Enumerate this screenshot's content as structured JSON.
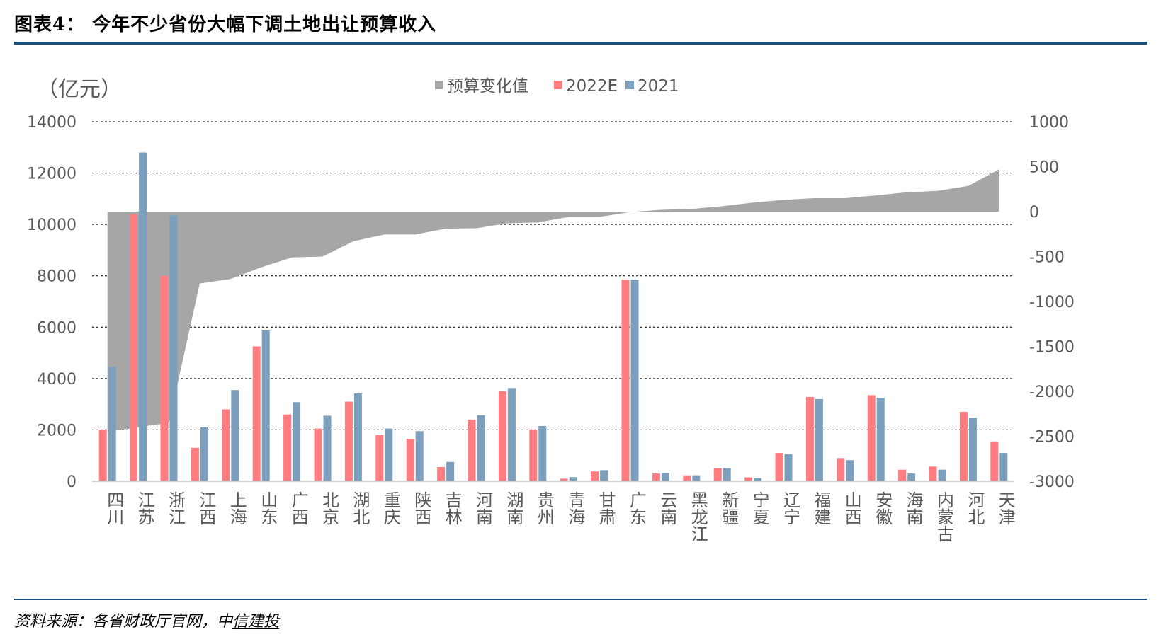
{
  "header": {
    "title": "图表4：  今年不少省份大幅下调土地出让预算收入"
  },
  "footer": {
    "source_prefix": "资料来源：各省财政厅官网，中",
    "source_brand": "信建投"
  },
  "colors": {
    "rule": "#1f4e79",
    "area": "#a6a6a6",
    "bar_2022E": "#ff7c80",
    "bar_2021": "#7b9fbc",
    "grid": "#000000"
  },
  "chart_data": {
    "type": "bar",
    "unit_label": "（亿元）",
    "legend": {
      "position": "top-center",
      "items": [
        "预算变化值",
        "2022E",
        "2021"
      ]
    },
    "categories": [
      "四川",
      "江苏",
      "浙江",
      "江西",
      "上海",
      "山东",
      "广西",
      "北京",
      "湖北",
      "重庆",
      "陕西",
      "吉林",
      "河南",
      "湖南",
      "贵州",
      "青海",
      "甘肃",
      "广东",
      "云南",
      "黑龙江",
      "新疆",
      "宁夏",
      "辽宁",
      "福建",
      "山西",
      "安徽",
      "海南",
      "内蒙古",
      "河北",
      "天津"
    ],
    "series": [
      {
        "name": "2022E",
        "kind": "bar",
        "axis": "left",
        "values": [
          2000,
          10400,
          8000,
          1300,
          2800,
          5250,
          2600,
          2050,
          3100,
          1800,
          1650,
          550,
          2400,
          3500,
          2000,
          100,
          380,
          7850,
          300,
          230,
          500,
          150,
          1100,
          3280,
          900,
          3350,
          450,
          570,
          2700,
          1550
        ]
      },
      {
        "name": "2021",
        "kind": "bar",
        "axis": "left",
        "values": [
          4450,
          12800,
          10350,
          2100,
          3550,
          5870,
          3080,
          2550,
          3420,
          2050,
          1950,
          750,
          2570,
          3630,
          2150,
          160,
          430,
          7850,
          320,
          230,
          520,
          120,
          1050,
          3200,
          820,
          3250,
          300,
          450,
          2470,
          1100
        ]
      },
      {
        "name": "预算变化值",
        "kind": "area",
        "axis": "right",
        "values": [
          -2450,
          -2400,
          -2350,
          -800,
          -750,
          -620,
          -510,
          -500,
          -330,
          -255,
          -255,
          -190,
          -185,
          -130,
          -120,
          -60,
          -60,
          -5,
          20,
          30,
          60,
          100,
          130,
          150,
          150,
          180,
          215,
          230,
          285,
          470
        ]
      }
    ],
    "y_left": {
      "min": 0,
      "max": 14000,
      "ticks": [
        0,
        2000,
        4000,
        6000,
        8000,
        10000,
        12000,
        14000
      ]
    },
    "y_right": {
      "min": -3000,
      "max": 1000,
      "ticks": [
        -3000,
        -2500,
        -2000,
        -1500,
        -1000,
        -500,
        0,
        500,
        1000
      ]
    },
    "grid": true
  }
}
